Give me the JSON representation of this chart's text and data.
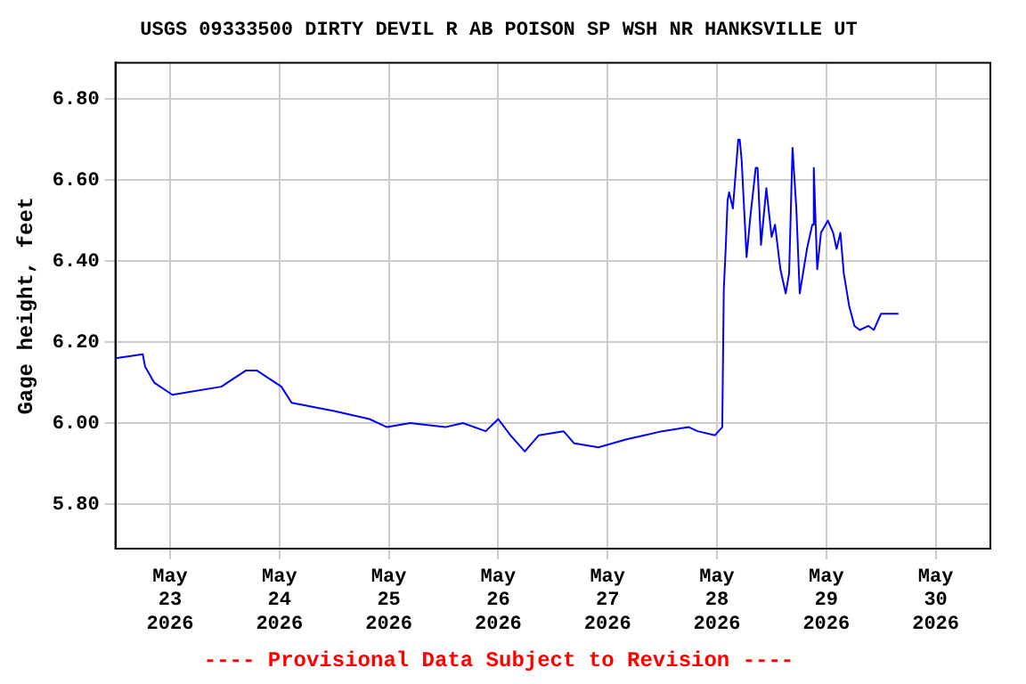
{
  "chart_data": {
    "type": "line",
    "title": "USGS 09333500 DIRTY DEVIL R AB POISON SP WSH NR HANKSVILLE UT",
    "ylabel": "Gage height, feet",
    "annotations": [
      "---- Provisional Data Subject to Revision ----"
    ],
    "x": [
      "2026-05-22T12:00",
      "2026-05-22T18:00",
      "2026-05-22T18:30",
      "2026-05-22T20:30",
      "2026-05-23T00:30",
      "2026-05-23T11:15",
      "2026-05-23T16:40",
      "2026-05-23T19:00",
      "2026-05-24T00:25",
      "2026-05-24T02:40",
      "2026-05-24T12:00",
      "2026-05-24T19:45",
      "2026-05-24T23:35",
      "2026-05-25T04:40",
      "2026-05-25T12:25",
      "2026-05-25T16:15",
      "2026-05-25T21:15",
      "2026-05-26T00:00",
      "2026-05-26T02:40",
      "2026-05-26T05:50",
      "2026-05-26T08:55",
      "2026-05-26T14:20",
      "2026-05-26T16:40",
      "2026-05-26T22:00",
      "2026-05-27T04:10",
      "2026-05-27T08:05",
      "2026-05-27T12:00",
      "2026-05-27T17:50",
      "2026-05-27T19:45",
      "2026-05-27T23:35",
      "2026-05-28T01:10",
      "2026-05-28T01:30",
      "2026-05-28T01:55",
      "2026-05-28T02:20",
      "2026-05-28T02:40",
      "2026-05-28T03:30",
      "2026-05-28T04:40",
      "2026-05-28T05:00",
      "2026-05-28T05:25",
      "2026-05-28T06:30",
      "2026-05-28T07:20",
      "2026-05-28T08:30",
      "2026-05-28T08:55",
      "2026-05-28T09:40",
      "2026-05-28T10:50",
      "2026-05-28T12:00",
      "2026-05-28T12:45",
      "2026-05-28T13:55",
      "2026-05-28T15:05",
      "2026-05-28T15:50",
      "2026-05-28T16:35",
      "2026-05-28T17:25",
      "2026-05-28T18:10",
      "2026-05-28T19:45",
      "2026-05-28T20:55",
      "2026-05-28T21:15",
      "2026-05-28T22:00",
      "2026-05-28T22:50",
      "2026-05-29T00:20",
      "2026-05-29T01:30",
      "2026-05-29T02:15",
      "2026-05-29T03:05",
      "2026-05-29T03:50",
      "2026-05-29T05:00",
      "2026-05-29T06:10",
      "2026-05-29T07:20",
      "2026-05-29T09:15",
      "2026-05-29T10:25",
      "2026-05-29T12:00",
      "2026-05-29T13:55",
      "2026-05-29T15:50"
    ],
    "series": [
      {
        "color": "#0000ff",
        "values": [
          6.16,
          6.17,
          6.14,
          6.1,
          6.07,
          6.09,
          6.13,
          6.13,
          6.09,
          6.05,
          6.03,
          6.01,
          5.99,
          6.0,
          5.99,
          6.0,
          5.98,
          6.01,
          5.97,
          5.93,
          5.97,
          5.98,
          5.95,
          5.94,
          5.96,
          5.97,
          5.98,
          5.99,
          5.98,
          5.97,
          5.99,
          6.33,
          6.43,
          6.55,
          6.57,
          6.53,
          6.7,
          6.7,
          6.65,
          6.41,
          6.51,
          6.63,
          6.63,
          6.44,
          6.58,
          6.46,
          6.49,
          6.38,
          6.32,
          6.37,
          6.68,
          6.53,
          6.32,
          6.43,
          6.49,
          6.63,
          6.38,
          6.47,
          6.5,
          6.47,
          6.43,
          6.47,
          6.37,
          6.29,
          6.24,
          6.23,
          6.24,
          6.23,
          6.27,
          6.27,
          6.27
        ]
      }
    ],
    "xlim": [
      "2026-05-22T12:00",
      "2026-05-30T12:00"
    ],
    "xticks": [
      {
        "value": "2026-05-23",
        "label": "May 23 2026"
      },
      {
        "value": "2026-05-24",
        "label": "May 24 2026"
      },
      {
        "value": "2026-05-25",
        "label": "May 25 2026"
      },
      {
        "value": "2026-05-26",
        "label": "May 26 2026"
      },
      {
        "value": "2026-05-27",
        "label": "May 27 2026"
      },
      {
        "value": "2026-05-28",
        "label": "May 28 2026"
      },
      {
        "value": "2026-05-29",
        "label": "May 29 2026"
      },
      {
        "value": "2026-05-30",
        "label": "May 30 2026"
      }
    ],
    "ylim": [
      5.69,
      6.89
    ],
    "yticks": [
      {
        "value": 5.8,
        "label": "5.80"
      },
      {
        "value": 6.0,
        "label": "6.00"
      },
      {
        "value": 6.2,
        "label": "6.20"
      },
      {
        "value": 6.4,
        "label": "6.40"
      },
      {
        "value": 6.6,
        "label": "6.60"
      },
      {
        "value": 6.8,
        "label": "6.80"
      }
    ],
    "grid": true,
    "legend": false,
    "marker": "none",
    "line_style": "solid"
  }
}
